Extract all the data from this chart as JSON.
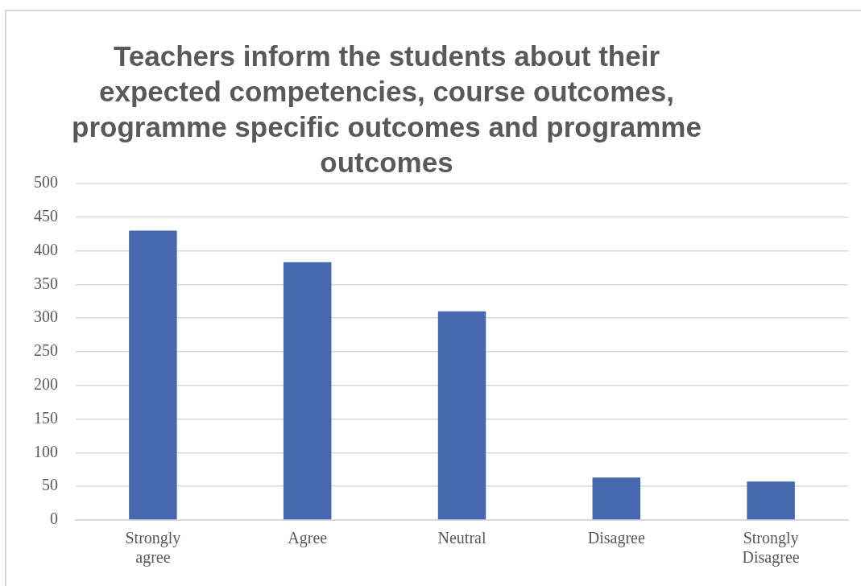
{
  "chart_data": {
    "type": "bar",
    "title": "Teachers inform the students about their expected competencies, course outcomes, programme specific outcomes and programme outcomes",
    "categories": [
      "Strongly agree",
      "Agree",
      "Neutral",
      "Disagree",
      "Strongly Disagree"
    ],
    "values": [
      430,
      383,
      310,
      63,
      57
    ],
    "color": "#4767ae",
    "ylim": [
      0,
      500
    ],
    "yticks": [
      0,
      50,
      100,
      150,
      200,
      250,
      300,
      350,
      400,
      450,
      500
    ],
    "grid": "y",
    "legend": false
  }
}
